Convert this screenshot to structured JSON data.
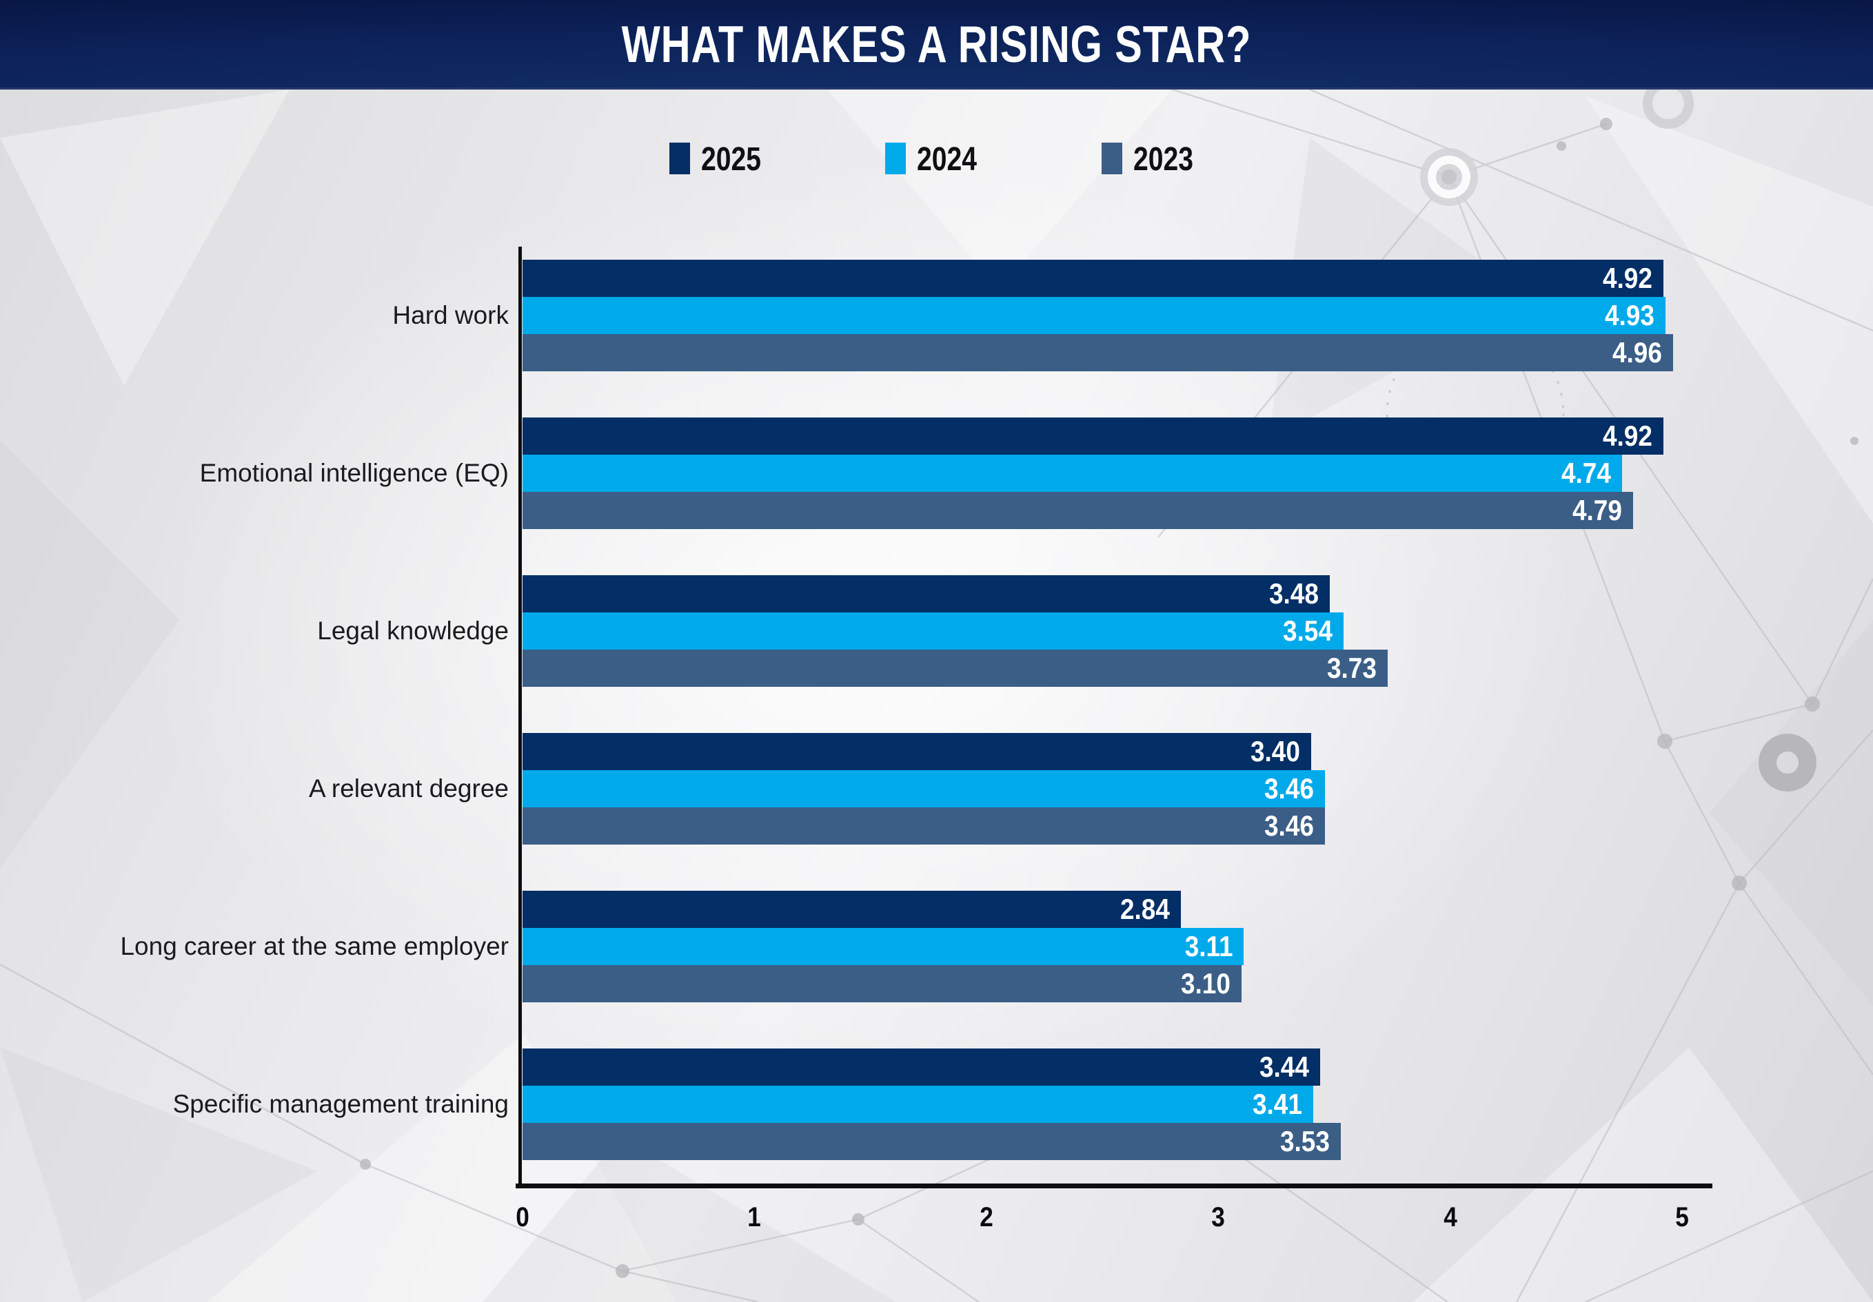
{
  "title": "WHAT MAKES A RISING STAR?",
  "chart_data": {
    "type": "bar",
    "orientation": "horizontal",
    "title": "WHAT MAKES A RISING STAR?",
    "categories": [
      "Hard work",
      "Emotional intelligence (EQ)",
      "Legal knowledge",
      "A relevant degree",
      "Long career at the same employer",
      "Specific management training"
    ],
    "series": [
      {
        "name": "2025",
        "color": "#032e66",
        "values": [
          4.92,
          4.92,
          3.48,
          3.4,
          2.84,
          3.44
        ]
      },
      {
        "name": "2024",
        "color": "#00aaea",
        "values": [
          4.93,
          4.74,
          3.54,
          3.46,
          3.11,
          3.41
        ]
      },
      {
        "name": "2023",
        "color": "#3b5e86",
        "values": [
          4.96,
          4.79,
          3.73,
          3.46,
          3.1,
          3.53
        ]
      }
    ],
    "xlim": [
      0,
      5
    ],
    "x_ticks": [
      "0",
      "1",
      "2",
      "3",
      "4",
      "5"
    ],
    "value_labels_decimals": 2,
    "legend_position": "top",
    "grid": false,
    "colors": {
      "header_background": "#0b2158",
      "title_text": "#ffffff",
      "axis": "#0e0e10",
      "category_text": "#1b1b1e",
      "value_text": "#ffffff",
      "page_background": "#e7e7ea"
    }
  }
}
